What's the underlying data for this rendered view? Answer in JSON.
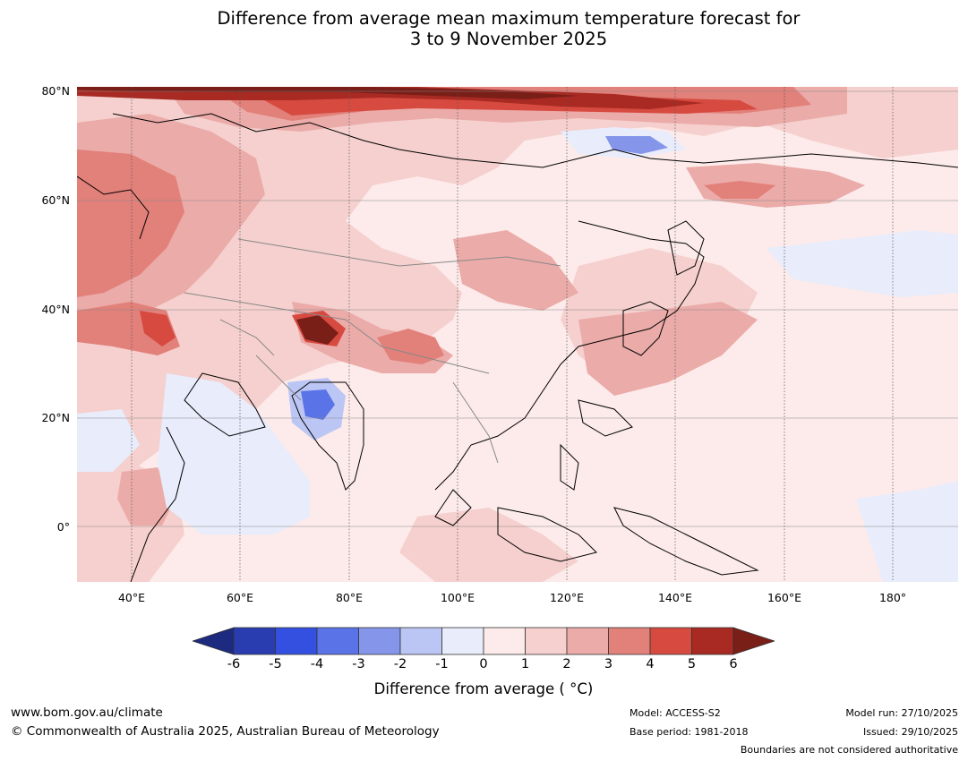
{
  "title": {
    "line1": "Difference from average mean maximum temperature forecast for",
    "line2": "3 to 9 November 2025"
  },
  "map": {
    "lat_labels": [
      "80°N",
      "60°N",
      "40°N",
      "20°N",
      "0°"
    ],
    "lon_labels": [
      "40°E",
      "60°E",
      "80°E",
      "100°E",
      "120°E",
      "140°E",
      "160°E",
      "180°"
    ]
  },
  "legend": {
    "title": "Difference from average ( °C)",
    "ticks": [
      "-6",
      "-5",
      "-4",
      "-3",
      "-2",
      "-1",
      "0",
      "1",
      "2",
      "3",
      "4",
      "5",
      "6"
    ],
    "colors": [
      "#1c2a80",
      "#2a3db0",
      "#3350e0",
      "#5a73e6",
      "#8596ea",
      "#bcc6f4",
      "#e8ecfb",
      "#fcebea",
      "#f5d0ce",
      "#ebaba8",
      "#e2807a",
      "#d64a40",
      "#a82a22",
      "#7a1e18"
    ]
  },
  "footer": {
    "website": "www.bom.gov.au/climate",
    "copyright": "© Commonwealth of Australia 2025, Australian Bureau of Meteorology",
    "model": "Model: ACCESS-S2",
    "base_period": "Base period: 1981-2018",
    "model_run": "Model run: 27/10/2025",
    "issued": "Issued: 29/10/2025",
    "disclaimer": "Boundaries are not considered authoritative"
  }
}
